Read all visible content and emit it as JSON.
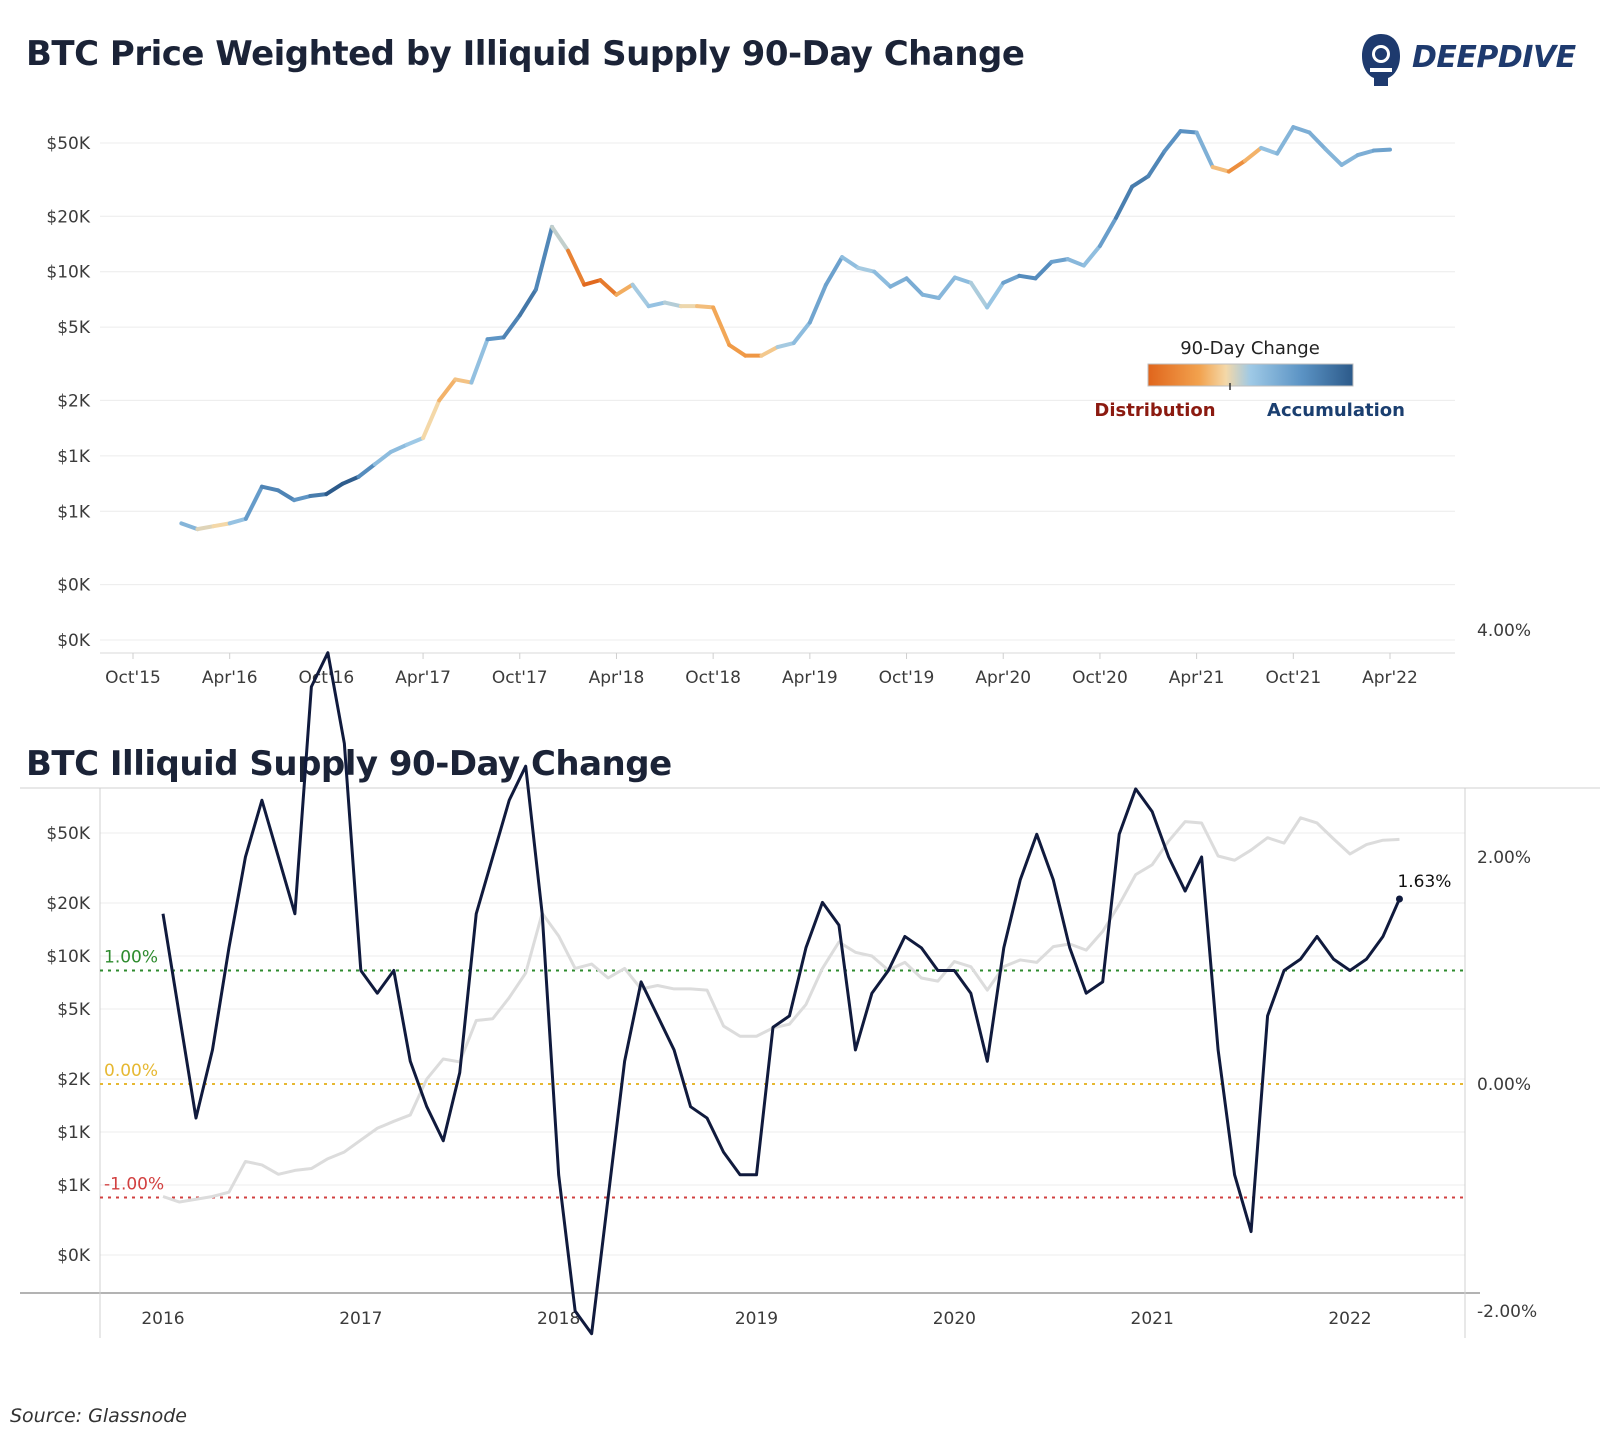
{
  "logo": {
    "text": "DEEPDIVE",
    "icon": "diver-helmet-icon",
    "color": "#1e3a6e"
  },
  "source": "Source: Glassnode",
  "colors": {
    "orange_dark": "#e0651c",
    "orange": "#f2a24e",
    "light": "#f4d8a8",
    "blue_light": "#9ec9e6",
    "blue_mid": "#5b93c4",
    "blue_dark": "#2c5a8a",
    "navy": "#101a3d",
    "grey_line": "#dcdcdc",
    "green": "#2e8b2e",
    "yellow": "#e6b832",
    "red": "#d24040"
  },
  "chart_data": [
    {
      "type": "line",
      "title": "BTC Price Weighted by Illiquid Supply 90-Day Change",
      "y_scale": "log",
      "y_tick_labels": [
        "$50K",
        "$20K",
        "$10K",
        "$5K",
        "$2K",
        "$1K",
        "$1K",
        "$0K",
        "$0K"
      ],
      "y_tick_values": [
        50000,
        20000,
        10000,
        5000,
        2000,
        1000,
        500,
        200,
        100
      ],
      "x_tick_labels": [
        "Oct'15",
        "Apr'16",
        "Oct'16",
        "Apr'17",
        "Oct'17",
        "Apr'18",
        "Oct'18",
        "Apr'19",
        "Oct'19",
        "Apr'20",
        "Oct'20",
        "Apr'21",
        "Oct'21",
        "Apr'22"
      ],
      "x_tick_dates": [
        "2015-10",
        "2016-04",
        "2016-10",
        "2017-04",
        "2017-10",
        "2018-04",
        "2018-10",
        "2019-04",
        "2019-10",
        "2020-04",
        "2020-10",
        "2021-04",
        "2021-10",
        "2022-04"
      ],
      "legend": {
        "title": "90-Day Change",
        "low_label": "Distribution",
        "high_label": "Accumulation",
        "placement": "middle-right"
      },
      "grid": true,
      "series": [
        {
          "date": "2016-01",
          "price": 430,
          "change": 1.5
        },
        {
          "date": "2016-02",
          "price": 400,
          "change": 0.6
        },
        {
          "date": "2016-03",
          "price": 415,
          "change": -0.3
        },
        {
          "date": "2016-04",
          "price": 430,
          "change": 0.3
        },
        {
          "date": "2016-05",
          "price": 455,
          "change": 1.2
        },
        {
          "date": "2016-06",
          "price": 680,
          "change": 2.0
        },
        {
          "date": "2016-07",
          "price": 650,
          "change": 2.5
        },
        {
          "date": "2016-08",
          "price": 575,
          "change": 2.0
        },
        {
          "date": "2016-09",
          "price": 605,
          "change": 1.5
        },
        {
          "date": "2016-10",
          "price": 620,
          "change": 3.5
        },
        {
          "date": "2016-11",
          "price": 705,
          "change": 3.8
        },
        {
          "date": "2016-12",
          "price": 770,
          "change": 3.0
        },
        {
          "date": "2017-01",
          "price": 900,
          "change": 1.0
        },
        {
          "date": "2017-02",
          "price": 1050,
          "change": 0.8
        },
        {
          "date": "2017-03",
          "price": 1150,
          "change": 1.0
        },
        {
          "date": "2017-04",
          "price": 1250,
          "change": 0.2
        },
        {
          "date": "2017-05",
          "price": 2000,
          "change": -0.2
        },
        {
          "date": "2017-06",
          "price": 2600,
          "change": -0.5
        },
        {
          "date": "2017-07",
          "price": 2500,
          "change": 0.1
        },
        {
          "date": "2017-08",
          "price": 4300,
          "change": 1.5
        },
        {
          "date": "2017-09",
          "price": 4400,
          "change": 2.0
        },
        {
          "date": "2017-10",
          "price": 5800,
          "change": 2.5
        },
        {
          "date": "2017-11",
          "price": 8000,
          "change": 2.8
        },
        {
          "date": "2017-12",
          "price": 17500,
          "change": 1.5
        },
        {
          "date": "2018-01",
          "price": 13000,
          "change": -0.8
        },
        {
          "date": "2018-02",
          "price": 8500,
          "change": -2.0
        },
        {
          "date": "2018-03",
          "price": 9000,
          "change": -2.2
        },
        {
          "date": "2018-04",
          "price": 7500,
          "change": -1.0
        },
        {
          "date": "2018-05",
          "price": 8500,
          "change": 0.2
        },
        {
          "date": "2018-06",
          "price": 6500,
          "change": 0.9
        },
        {
          "date": "2018-07",
          "price": 6800,
          "change": 0.6
        },
        {
          "date": "2018-08",
          "price": 6500,
          "change": 0.3
        },
        {
          "date": "2018-09",
          "price": 6500,
          "change": -0.2
        },
        {
          "date": "2018-10",
          "price": 6400,
          "change": -0.3
        },
        {
          "date": "2018-11",
          "price": 4000,
          "change": -0.6
        },
        {
          "date": "2018-12",
          "price": 3500,
          "change": -0.8
        },
        {
          "date": "2019-01",
          "price": 3500,
          "change": -0.8
        },
        {
          "date": "2019-02",
          "price": 3900,
          "change": 0.5
        },
        {
          "date": "2019-03",
          "price": 4100,
          "change": 0.6
        },
        {
          "date": "2019-04",
          "price": 5300,
          "change": 1.2
        },
        {
          "date": "2019-05",
          "price": 8500,
          "change": 1.6
        },
        {
          "date": "2019-06",
          "price": 12000,
          "change": 1.4
        },
        {
          "date": "2019-07",
          "price": 10500,
          "change": 0.3
        },
        {
          "date": "2019-08",
          "price": 10000,
          "change": 0.8
        },
        {
          "date": "2019-09",
          "price": 8300,
          "change": 1.0
        },
        {
          "date": "2019-10",
          "price": 9200,
          "change": 1.3
        },
        {
          "date": "2019-11",
          "price": 7500,
          "change": 1.2
        },
        {
          "date": "2019-12",
          "price": 7200,
          "change": 1.0
        },
        {
          "date": "2020-01",
          "price": 9300,
          "change": 1.0
        },
        {
          "date": "2020-02",
          "price": 8700,
          "change": 0.8
        },
        {
          "date": "2020-03",
          "price": 6400,
          "change": 0.2
        },
        {
          "date": "2020-04",
          "price": 8700,
          "change": 1.2
        },
        {
          "date": "2020-05",
          "price": 9500,
          "change": 1.8
        },
        {
          "date": "2020-06",
          "price": 9200,
          "change": 2.2
        },
        {
          "date": "2020-07",
          "price": 11300,
          "change": 1.8
        },
        {
          "date": "2020-08",
          "price": 11700,
          "change": 1.2
        },
        {
          "date": "2020-09",
          "price": 10800,
          "change": 0.8
        },
        {
          "date": "2020-10",
          "price": 13800,
          "change": 0.9
        },
        {
          "date": "2020-11",
          "price": 19600,
          "change": 2.2
        },
        {
          "date": "2020-12",
          "price": 29000,
          "change": 2.6
        },
        {
          "date": "2021-01",
          "price": 33000,
          "change": 2.4
        },
        {
          "date": "2021-02",
          "price": 45000,
          "change": 2.0
        },
        {
          "date": "2021-03",
          "price": 58000,
          "change": 1.7
        },
        {
          "date": "2021-04",
          "price": 57000,
          "change": 2.0
        },
        {
          "date": "2021-05",
          "price": 37000,
          "change": 0.3
        },
        {
          "date": "2021-06",
          "price": 35000,
          "change": -0.8
        },
        {
          "date": "2021-07",
          "price": 40000,
          "change": -1.3
        },
        {
          "date": "2021-08",
          "price": 47000,
          "change": 0.6
        },
        {
          "date": "2021-09",
          "price": 43800,
          "change": 1.0
        },
        {
          "date": "2021-10",
          "price": 61000,
          "change": 1.1
        },
        {
          "date": "2021-11",
          "price": 57000,
          "change": 1.3
        },
        {
          "date": "2021-12",
          "price": 46300,
          "change": 1.1
        },
        {
          "date": "2022-01",
          "price": 38000,
          "change": 1.0
        },
        {
          "date": "2022-02",
          "price": 43000,
          "change": 1.1
        },
        {
          "date": "2022-03",
          "price": 45500,
          "change": 1.3
        },
        {
          "date": "2022-04",
          "price": 46000,
          "change": 1.63
        }
      ]
    },
    {
      "type": "line",
      "title": "BTC Illiquid Supply 90-Day Change",
      "y_left_scale": "log",
      "y_left_tick_labels": [
        "$50K",
        "$20K",
        "$10K",
        "$5K",
        "$2K",
        "$1K",
        "$1K",
        "$0K"
      ],
      "y_left_tick_values": [
        50000,
        20000,
        10000,
        5000,
        2000,
        1000,
        500,
        200
      ],
      "y_right_tick_labels": [
        "4.00%",
        "2.00%",
        "0.00%",
        "-2.00%"
      ],
      "y_right_tick_values": [
        4,
        2,
        0,
        -2
      ],
      "x_tick_labels": [
        "2016",
        "2017",
        "2018",
        "2019",
        "2020",
        "2021",
        "2022"
      ],
      "x_tick_dates": [
        "2016-01",
        "2017-01",
        "2018-01",
        "2019-01",
        "2020-01",
        "2021-01",
        "2022-01"
      ],
      "reference_lines": [
        {
          "label": "1.00%",
          "value": 1.0,
          "color": "#2e8b2e"
        },
        {
          "label": "0.00%",
          "value": 0.0,
          "color": "#e6b832"
        },
        {
          "label": "-1.00%",
          "value": -1.0,
          "color": "#d24040"
        }
      ],
      "last_value_label": "1.63%",
      "series_names": [
        "price",
        "change"
      ],
      "note": "price drawn in light grey against the left axis; change drawn in navy against the right axis; both taken from chart 1 series"
    }
  ]
}
